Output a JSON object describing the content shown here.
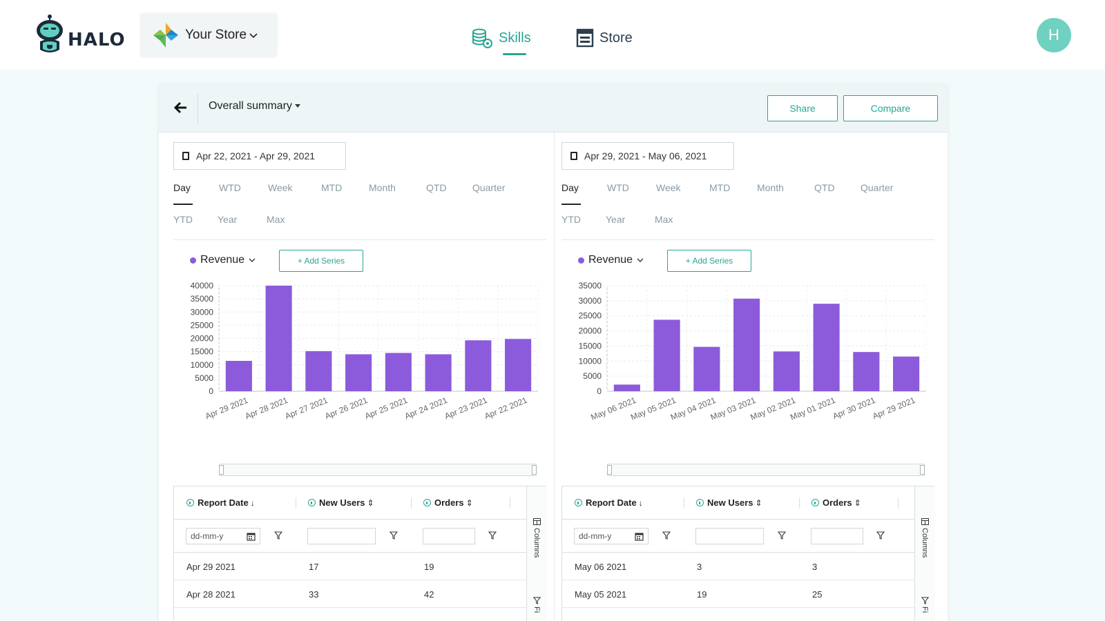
{
  "header": {
    "logo_text": "HALO",
    "store_name": "Your Store",
    "nav": [
      {
        "label": "Skills",
        "active": true
      },
      {
        "label": "Store",
        "active": false
      }
    ],
    "avatar_initial": "H"
  },
  "toolbar": {
    "summary_label": "Overall summary",
    "share_label": "Share",
    "compare_label": "Compare"
  },
  "colors": {
    "accent": "#27a594",
    "bar": "#8b5bdb",
    "avatar": "#6fd1bf"
  },
  "period_tabs": [
    "Day",
    "WTD",
    "Week",
    "MTD",
    "Month",
    "QTD",
    "Quarter",
    "YTD",
    "Year",
    "Max"
  ],
  "panels": [
    {
      "date_range": "Apr 22, 2021 - Apr 29, 2021",
      "active_period": "Day",
      "series_label": "Revenue",
      "add_series_label": "+ Add Series",
      "table": {
        "columns": [
          "Report Date",
          "New Users",
          "Orders"
        ],
        "date_placeholder": "dd-mm-y",
        "rows": [
          {
            "date": "Apr 29 2021",
            "new_users": "17",
            "orders": "19"
          },
          {
            "date": "Apr 28 2021",
            "new_users": "33",
            "orders": "42"
          }
        ],
        "side_columns_label": "Columns",
        "side_filters_label": "Fi"
      }
    },
    {
      "date_range": "Apr 29, 2021 - May 06, 2021",
      "active_period": "Day",
      "series_label": "Revenue",
      "add_series_label": "+ Add Series",
      "table": {
        "columns": [
          "Report Date",
          "New Users",
          "Orders"
        ],
        "date_placeholder": "dd-mm-y",
        "rows": [
          {
            "date": "May 06 2021",
            "new_users": "3",
            "orders": "3"
          },
          {
            "date": "May 05 2021",
            "new_users": "19",
            "orders": "25"
          }
        ],
        "side_columns_label": "Columns",
        "side_filters_label": "Fi"
      }
    }
  ],
  "chart_data": [
    {
      "type": "bar",
      "categories": [
        "Apr 29 2021",
        "Apr 28 2021",
        "Apr 27 2021",
        "Apr 26 2021",
        "Apr 25 2021",
        "Apr 24 2021",
        "Apr 23 2021",
        "Apr 22 2021"
      ],
      "values": [
        11500,
        40000,
        15200,
        14000,
        14500,
        14000,
        19300,
        19800
      ],
      "ylim": [
        0,
        40000
      ],
      "yticks": [
        0,
        5000,
        10000,
        15000,
        20000,
        25000,
        30000,
        35000,
        40000
      ],
      "grid": true
    },
    {
      "type": "bar",
      "categories": [
        "May 06 2021",
        "May 05 2021",
        "May 04 2021",
        "May 03 2021",
        "May 02 2021",
        "May 01 2021",
        "Apr 30 2021",
        "Apr 29 2021"
      ],
      "values": [
        2200,
        23700,
        14700,
        30700,
        13200,
        29000,
        13000,
        11500
      ],
      "ylim": [
        0,
        35000
      ],
      "yticks": [
        0,
        5000,
        10000,
        15000,
        20000,
        25000,
        30000,
        35000
      ],
      "grid": true
    }
  ]
}
